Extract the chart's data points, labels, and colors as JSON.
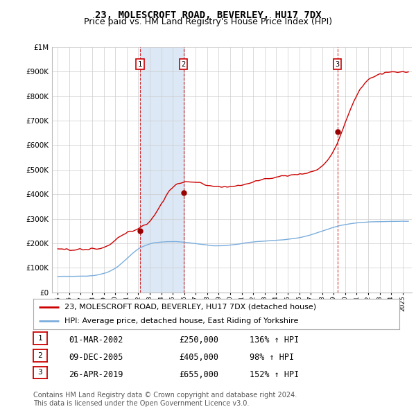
{
  "title": "23, MOLESCROFT ROAD, BEVERLEY, HU17 7DX",
  "subtitle": "Price paid vs. HM Land Registry's House Price Index (HPI)",
  "ytick_values": [
    0,
    100000,
    200000,
    300000,
    400000,
    500000,
    600000,
    700000,
    800000,
    900000,
    1000000
  ],
  "ylim": [
    0,
    1000000
  ],
  "xlim_start": 1994.5,
  "xlim_end": 2025.8,
  "sale_dates": [
    "2002-03-01",
    "2005-12-09",
    "2019-04-26"
  ],
  "sale_decimal": [
    2002.163,
    2005.938,
    2019.32
  ],
  "sale_prices": [
    250000,
    405000,
    655000
  ],
  "sale_labels": [
    "1",
    "2",
    "3"
  ],
  "sale_hpi_pct": [
    "136% ↑ HPI",
    "98% ↑ HPI",
    "152% ↑ HPI"
  ],
  "sale_date_labels": [
    "01-MAR-2002",
    "09-DEC-2005",
    "26-APR-2019"
  ],
  "sale_price_labels": [
    "£250,000",
    "£405,000",
    "£655,000"
  ],
  "legend_entries": [
    "23, MOLESCROFT ROAD, BEVERLEY, HU17 7DX (detached house)",
    "HPI: Average price, detached house, East Riding of Yorkshire"
  ],
  "legend_colors": [
    "#cc0000",
    "#7aaddc"
  ],
  "shade_color": "#dce8f5",
  "footnote": "Contains HM Land Registry data © Crown copyright and database right 2024.\nThis data is licensed under the Open Government Licence v3.0.",
  "bg_color": "#ffffff",
  "grid_color": "#cccccc",
  "hpi_line_color": "#7aaddc",
  "price_line_color": "#cc0000",
  "vline_color": "#cc0000",
  "marker_color": "#990000",
  "title_fontsize": 10,
  "subtitle_fontsize": 9,
  "legend_fontsize": 8,
  "table_fontsize": 8.5,
  "footnote_fontsize": 7
}
